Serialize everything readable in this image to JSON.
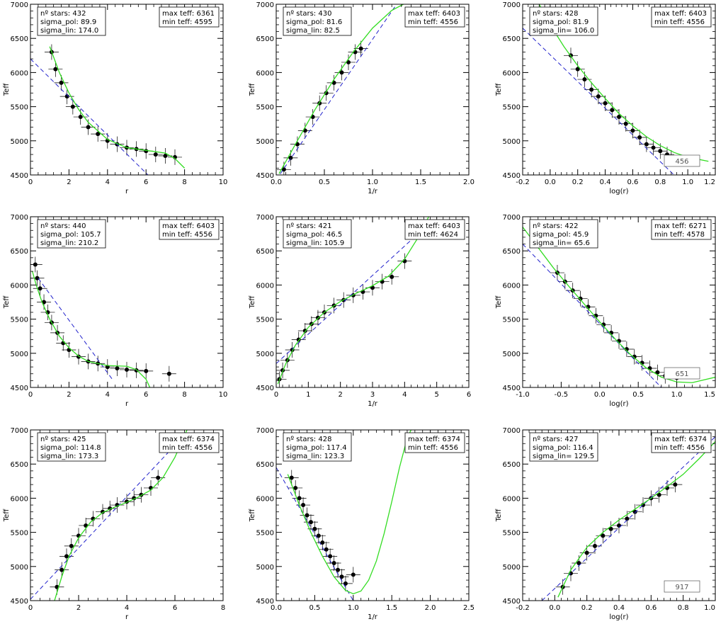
{
  "chart_data": [
    {
      "type": "scatter",
      "xlabel": "r",
      "ylabel": "Teff",
      "xlim": [
        0,
        10
      ],
      "ylim": [
        4500,
        7000
      ],
      "xticks": [
        0,
        2,
        4,
        6,
        8,
        10
      ],
      "xtick_labels": [
        "0",
        "2",
        "4",
        "6",
        "8",
        "10"
      ],
      "yticks": [
        4500,
        5000,
        5500,
        6000,
        6500,
        7000
      ],
      "ytick_labels": [
        "4500",
        "5000",
        "5500",
        "6000",
        "6500",
        "7000"
      ],
      "stats": [
        "nº stars:  432",
        "sigma_pol:   89.9",
        "sigma_lin:  174.0"
      ],
      "teff_box": [
        "max teff: 6361",
        " min teff: 4595"
      ],
      "badge": "",
      "fit_poly": {
        "x": [
          1.0,
          1.5,
          2,
          2.5,
          3,
          4,
          5,
          6,
          7,
          7.5,
          8
        ],
        "y": [
          6380,
          6000,
          5700,
          5460,
          5270,
          5020,
          4900,
          4860,
          4820,
          4740,
          4600
        ]
      },
      "fit_lin": {
        "x": [
          0,
          6.1
        ],
        "y": [
          6200,
          4500
        ]
      },
      "points": {
        "x": [
          1.1,
          1.3,
          1.6,
          1.9,
          2.2,
          2.6,
          3.0,
          3.5,
          4.0,
          4.5,
          5.0,
          5.5,
          6.0,
          6.5,
          7.0,
          7.5
        ],
        "y": [
          6300,
          6050,
          5850,
          5650,
          5500,
          5350,
          5200,
          5100,
          5000,
          4950,
          4900,
          4880,
          4850,
          4800,
          4780,
          4760
        ]
      }
    },
    {
      "type": "scatter",
      "xlabel": "1/r",
      "ylabel": "Teff",
      "xlim": [
        0,
        2
      ],
      "ylim": [
        4500,
        7000
      ],
      "xticks": [
        0,
        0.5,
        1,
        1.5,
        2
      ],
      "xtick_labels": [
        "0.0",
        "0.5",
        "1.0",
        "1.5",
        "2.0"
      ],
      "yticks": [
        4500,
        5000,
        5500,
        6000,
        6500,
        7000
      ],
      "ytick_labels": [
        "4500",
        "5000",
        "5500",
        "6000",
        "6500",
        "7000"
      ],
      "stats": [
        "nº stars:  430",
        "sigma_pol:   81.6",
        "sigma_lin:   82.5"
      ],
      "teff_box": [
        "max teff: 6403",
        " min teff: 4556"
      ],
      "badge": "",
      "fit_poly": {
        "x": [
          0.03,
          0.2,
          0.4,
          0.6,
          0.8,
          1.0,
          1.2,
          1.32
        ],
        "y": [
          4520,
          4950,
          5450,
          5900,
          6300,
          6650,
          6910,
          7000
        ]
      },
      "fit_lin": {
        "x": [
          0,
          1.25
        ],
        "y": [
          4430,
          7000
        ]
      },
      "points": {
        "x": [
          0.08,
          0.15,
          0.22,
          0.3,
          0.38,
          0.45,
          0.52,
          0.6,
          0.68,
          0.75,
          0.82,
          0.88
        ],
        "y": [
          4580,
          4750,
          4950,
          5150,
          5350,
          5550,
          5700,
          5850,
          6000,
          6150,
          6300,
          6350
        ]
      }
    },
    {
      "type": "scatter",
      "xlabel": "log(r)",
      "ylabel": "Teff",
      "xlim": [
        -0.2,
        1.2
      ],
      "ylim": [
        4500,
        7000
      ],
      "xticks": [
        -0.2,
        0,
        0.2,
        0.4,
        0.6,
        0.8,
        1.0,
        1.2
      ],
      "xtick_labels": [
        "-0.2",
        "0.0",
        "0.2",
        "0.4",
        "0.6",
        "0.8",
        "1.0",
        "1.2"
      ],
      "yticks": [
        4500,
        5000,
        5500,
        6000,
        6500,
        7000
      ],
      "ytick_labels": [
        "4500",
        "5000",
        "5500",
        "6000",
        "6500",
        "7000"
      ],
      "stats": [
        "nº stars:  428",
        "sigma_pol:   81.9",
        "sigma_lin=  106.0"
      ],
      "teff_box": [
        "max teff: 6403",
        " min teff: 4556"
      ],
      "badge": "456",
      "fit_poly": {
        "x": [
          -0.08,
          0.0,
          0.1,
          0.2,
          0.3,
          0.4,
          0.5,
          0.6,
          0.7,
          0.8,
          0.9,
          1.0,
          1.15
        ],
        "y": [
          7000,
          6700,
          6380,
          6100,
          5850,
          5620,
          5400,
          5220,
          5060,
          4930,
          4830,
          4760,
          4700
        ]
      },
      "fit_lin": {
        "x": [
          -0.2,
          0.9
        ],
        "y": [
          6650,
          4500
        ]
      },
      "points": {
        "x": [
          0.15,
          0.2,
          0.25,
          0.3,
          0.35,
          0.4,
          0.45,
          0.5,
          0.55,
          0.6,
          0.65,
          0.7,
          0.75,
          0.8,
          0.85,
          0.88
        ],
        "y": [
          6250,
          6050,
          5900,
          5750,
          5650,
          5550,
          5450,
          5350,
          5250,
          5150,
          5050,
          4950,
          4900,
          4850,
          4800,
          4750
        ]
      }
    },
    {
      "type": "scatter",
      "xlabel": "r",
      "ylabel": "Teff",
      "xlim": [
        0,
        10
      ],
      "ylim": [
        4500,
        7000
      ],
      "xticks": [
        0,
        2,
        4,
        6,
        8,
        10
      ],
      "xtick_labels": [
        "0",
        "2",
        "4",
        "6",
        "8",
        "10"
      ],
      "yticks": [
        4500,
        5000,
        5500,
        6000,
        6500,
        7000
      ],
      "ytick_labels": [
        "4500",
        "5000",
        "5500",
        "6000",
        "6500",
        "7000"
      ],
      "stats": [
        "nº stars:  440",
        "sigma_pol:  105.7",
        "sigma_lin:  210.2"
      ],
      "teff_box": [
        "max teff: 6403",
        " min teff: 4556"
      ],
      "badge": "",
      "fit_poly": {
        "x": [
          0.1,
          0.3,
          0.6,
          1.0,
          1.5,
          2.0,
          2.5,
          3.0,
          4.0,
          5.0,
          5.5,
          6.0,
          6.2
        ],
        "y": [
          6200,
          6000,
          5750,
          5500,
          5250,
          5080,
          4960,
          4880,
          4820,
          4810,
          4760,
          4620,
          4500
        ]
      },
      "fit_lin": {
        "x": [
          0.4,
          4.3
        ],
        "y": [
          6100,
          4600
        ]
      },
      "points": {
        "x": [
          0.25,
          0.35,
          0.5,
          0.7,
          0.9,
          1.1,
          1.4,
          1.7,
          2.0,
          2.5,
          3.0,
          3.5,
          4.0,
          4.5,
          5.0,
          5.5,
          6.0,
          7.2
        ],
        "y": [
          6300,
          6100,
          5950,
          5750,
          5600,
          5450,
          5300,
          5150,
          5050,
          4950,
          4880,
          4850,
          4800,
          4780,
          4760,
          4750,
          4740,
          4700
        ]
      }
    },
    {
      "type": "scatter",
      "xlabel": "1/r",
      "ylabel": "Teff",
      "xlim": [
        0,
        6
      ],
      "ylim": [
        4500,
        7000
      ],
      "xticks": [
        0,
        1,
        2,
        3,
        4,
        5,
        6
      ],
      "xtick_labels": [
        "0",
        "1",
        "2",
        "3",
        "4",
        "5",
        "6"
      ],
      "yticks": [
        4500,
        5000,
        5500,
        6000,
        6500,
        7000
      ],
      "ytick_labels": [
        "4500",
        "5000",
        "5500",
        "6000",
        "6500",
        "7000"
      ],
      "stats": [
        "nº stars:  421",
        "sigma_pol:   46.5",
        "sigma_lin:  105.9"
      ],
      "teff_box": [
        "max teff: 6403",
        " min teff: 4624"
      ],
      "badge": "",
      "fit_poly": {
        "x": [
          0.05,
          0.3,
          0.6,
          1.0,
          1.5,
          2.0,
          2.5,
          3.0,
          3.5,
          4.0,
          4.4,
          4.75
        ],
        "y": [
          4550,
          4850,
          5120,
          5380,
          5600,
          5760,
          5880,
          5990,
          6130,
          6380,
          6680,
          7000
        ]
      },
      "fit_lin": {
        "x": [
          0,
          4.3
        ],
        "y": [
          4850,
          6700
        ]
      },
      "points": {
        "x": [
          0.1,
          0.2,
          0.35,
          0.5,
          0.7,
          0.9,
          1.1,
          1.3,
          1.5,
          1.8,
          2.1,
          2.4,
          2.7,
          3.0,
          3.3,
          3.6,
          4.0
        ],
        "y": [
          4620,
          4750,
          4900,
          5050,
          5200,
          5330,
          5430,
          5520,
          5600,
          5700,
          5780,
          5850,
          5900,
          5960,
          6050,
          6120,
          6350
        ]
      }
    },
    {
      "type": "scatter",
      "xlabel": "log(r)",
      "ylabel": "Teff",
      "xlim": [
        -1.0,
        1.5
      ],
      "ylim": [
        4500,
        7000
      ],
      "xticks": [
        -1.0,
        -0.5,
        0,
        0.5,
        1.0,
        1.5
      ],
      "xtick_labels": [
        "-1.0",
        "-0.5",
        "0.0",
        "0.5",
        "1.0",
        "1.5"
      ],
      "yticks": [
        4500,
        5000,
        5500,
        6000,
        6500,
        7000
      ],
      "ytick_labels": [
        "4500",
        "5000",
        "5500",
        "6000",
        "6500",
        "7000"
      ],
      "stats": [
        "nº stars:  422",
        "sigma_pol:   45.9",
        "sigma_lin=   65.6"
      ],
      "teff_box": [
        "max teff: 6271",
        " min teff: 4578"
      ],
      "badge": "651",
      "fit_poly": {
        "x": [
          -1.0,
          -0.8,
          -0.6,
          -0.4,
          -0.2,
          0.0,
          0.2,
          0.4,
          0.6,
          0.8,
          1.0,
          1.2,
          1.5
        ],
        "y": [
          6850,
          6550,
          6250,
          5980,
          5720,
          5460,
          5210,
          4980,
          4790,
          4650,
          4580,
          4570,
          4650
        ]
      },
      "fit_lin": {
        "x": [
          -1.0,
          0.8
        ],
        "y": [
          6600,
          4500
        ]
      },
      "points": {
        "x": [
          -0.55,
          -0.45,
          -0.35,
          -0.25,
          -0.15,
          -0.05,
          0.05,
          0.15,
          0.25,
          0.35,
          0.45,
          0.55,
          0.65,
          0.75,
          0.85,
          1.0
        ],
        "y": [
          6180,
          6050,
          5920,
          5800,
          5680,
          5550,
          5420,
          5300,
          5180,
          5060,
          4950,
          4860,
          4780,
          4720,
          4670,
          4640
        ]
      }
    },
    {
      "type": "scatter",
      "xlabel": "r",
      "ylabel": "Teff",
      "xlim": [
        0,
        8
      ],
      "ylim": [
        4500,
        7000
      ],
      "xticks": [
        0,
        2,
        4,
        6,
        8
      ],
      "xtick_labels": [
        "0",
        "2",
        "4",
        "6",
        "8"
      ],
      "yticks": [
        4500,
        5000,
        5500,
        6000,
        6500,
        7000
      ],
      "ytick_labels": [
        "4500",
        "5000",
        "5500",
        "6000",
        "6500",
        "7000"
      ],
      "stats": [
        "nº stars:  425",
        "sigma_pol:  114.8",
        "sigma_lin:  173.3"
      ],
      "teff_box": [
        "max teff: 6374",
        " min teff: 4556"
      ],
      "badge": "",
      "fit_poly": {
        "x": [
          1.0,
          1.3,
          1.6,
          2.0,
          2.5,
          3.0,
          3.5,
          4.0,
          4.5,
          5.0,
          5.5,
          6.0,
          6.5
        ],
        "y": [
          4500,
          4850,
          5150,
          5420,
          5650,
          5790,
          5870,
          5940,
          6020,
          6120,
          6300,
          6600,
          7000
        ]
      },
      "fit_lin": {
        "x": [
          0,
          6.2
        ],
        "y": [
          4520,
          6850
        ]
      },
      "points": {
        "x": [
          1.1,
          1.3,
          1.5,
          1.7,
          2.0,
          2.3,
          2.6,
          3.0,
          3.3,
          3.6,
          4.0,
          4.3,
          4.6,
          5.0,
          5.3
        ],
        "y": [
          4700,
          4950,
          5150,
          5300,
          5450,
          5600,
          5700,
          5800,
          5850,
          5900,
          5950,
          6000,
          6050,
          6150,
          6300
        ]
      }
    },
    {
      "type": "scatter",
      "xlabel": "1/r",
      "ylabel": "Teff",
      "xlim": [
        0,
        2.5
      ],
      "ylim": [
        4500,
        7000
      ],
      "xticks": [
        0,
        0.5,
        1,
        1.5,
        2,
        2.5
      ],
      "xtick_labels": [
        "0.0",
        "0.5",
        "1.0",
        "1.5",
        "2.0",
        "2.5"
      ],
      "yticks": [
        4500,
        5000,
        5500,
        6000,
        6500,
        7000
      ],
      "ytick_labels": [
        "4500",
        "5000",
        "5500",
        "6000",
        "6500",
        "7000"
      ],
      "stats": [
        "nº stars:  428",
        "sigma_pol:  117.4",
        "sigma_lin:  123.3"
      ],
      "teff_box": [
        "max teff: 6374",
        " min teff: 4556"
      ],
      "badge": "",
      "fit_poly": {
        "x": [
          0.15,
          0.3,
          0.45,
          0.6,
          0.75,
          0.9,
          1.0,
          1.1,
          1.2,
          1.3,
          1.4,
          1.5,
          1.6,
          1.7,
          1.75
        ],
        "y": [
          6350,
          5900,
          5500,
          5150,
          4850,
          4650,
          4600,
          4640,
          4800,
          5080,
          5480,
          5950,
          6450,
          6880,
          7000
        ]
      },
      "fit_lin": {
        "x": [
          0,
          1.0
        ],
        "y": [
          6450,
          4500
        ]
      },
      "points": {
        "x": [
          0.2,
          0.25,
          0.3,
          0.35,
          0.4,
          0.45,
          0.5,
          0.55,
          0.6,
          0.65,
          0.7,
          0.75,
          0.8,
          0.85,
          0.9,
          1.0
        ],
        "y": [
          6300,
          6150,
          6000,
          5900,
          5750,
          5650,
          5550,
          5450,
          5350,
          5250,
          5150,
          5050,
          4950,
          4850,
          4750,
          4880
        ]
      }
    },
    {
      "type": "scatter",
      "xlabel": "log(r)",
      "ylabel": "Teff",
      "xlim": [
        -0.2,
        1.0
      ],
      "ylim": [
        4500,
        7000
      ],
      "xticks": [
        -0.2,
        0,
        0.2,
        0.4,
        0.6,
        0.8,
        1.0
      ],
      "xtick_labels": [
        "-0.2",
        "0.0",
        "0.2",
        "0.4",
        "0.6",
        "0.8",
        "1.0"
      ],
      "yticks": [
        4500,
        5000,
        5500,
        6000,
        6500,
        7000
      ],
      "ytick_labels": [
        "4500",
        "5000",
        "5500",
        "6000",
        "6500",
        "7000"
      ],
      "stats": [
        "nº stars:  427",
        "sigma_pol:  116.4",
        "sigma_lin=  129.5"
      ],
      "teff_box": [
        "max teff: 6374",
        " min teff: 4556"
      ],
      "badge": "917",
      "fit_poly": {
        "x": [
          0.02,
          0.1,
          0.2,
          0.3,
          0.4,
          0.5,
          0.6,
          0.7,
          0.8,
          0.9,
          1.0
        ],
        "y": [
          4550,
          4950,
          5280,
          5500,
          5680,
          5840,
          6000,
          6170,
          6350,
          6580,
          6830
        ]
      },
      "fit_lin": {
        "x": [
          -0.08,
          1.0
        ],
        "y": [
          4500,
          6900
        ]
      },
      "points": {
        "x": [
          0.05,
          0.1,
          0.15,
          0.2,
          0.25,
          0.3,
          0.35,
          0.4,
          0.45,
          0.5,
          0.55,
          0.6,
          0.65,
          0.7,
          0.75
        ],
        "y": [
          4700,
          4900,
          5050,
          5200,
          5300,
          5450,
          5550,
          5600,
          5700,
          5800,
          5900,
          6000,
          6050,
          6150,
          6200
        ]
      }
    }
  ]
}
